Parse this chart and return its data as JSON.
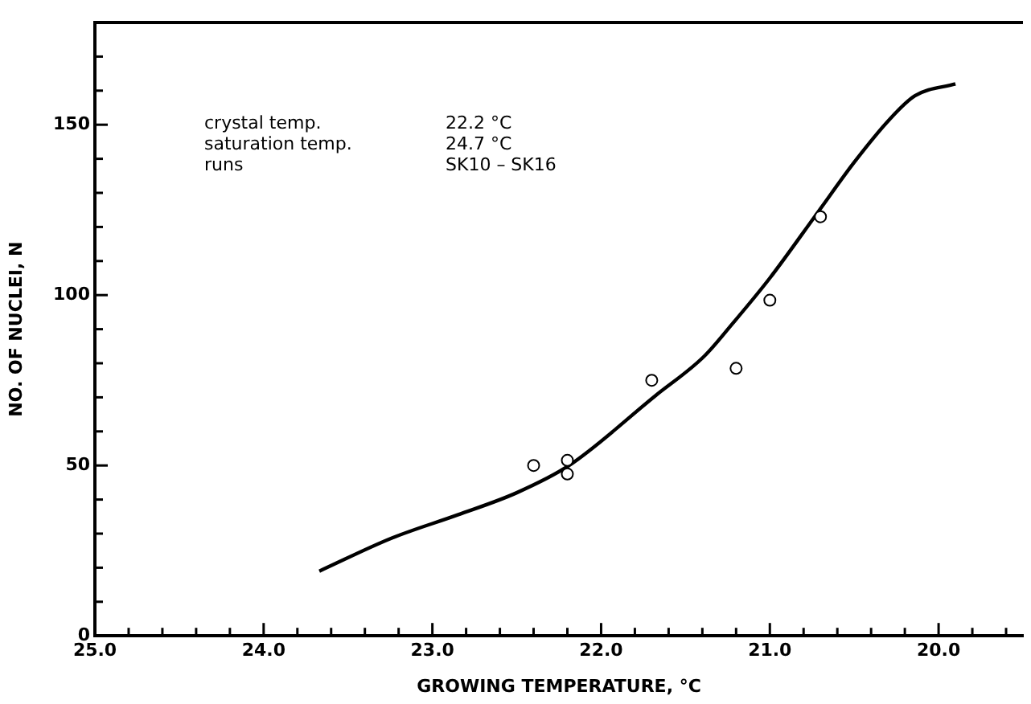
{
  "chart_data": {
    "type": "scatter",
    "xlabel": "GROWING TEMPERATURE, °C",
    "ylabel": "NO. OF NUCLEI, N",
    "annotations": [
      "crystal temp.",
      "22.2 °C",
      "saturation temp.",
      "24.7 °C",
      "runs",
      "SK10 – SK16"
    ],
    "series": [
      {
        "type": "scatter",
        "color": "#000000",
        "marker": "circle",
        "x": [
          22.4,
          22.2,
          22.2,
          21.7,
          21.2,
          21.0,
          20.7
        ],
        "values": [
          50,
          51.5,
          47.5,
          75,
          78.5,
          98.5,
          123
        ]
      },
      {
        "type": "line",
        "color": "#000000",
        "marker": "none",
        "x": [
          19.9,
          20.14,
          20.29,
          20.5,
          20.72,
          21.0,
          21.22,
          21.39,
          21.68,
          22.19,
          22.5,
          22.85,
          23.24,
          23.67
        ],
        "values": [
          162,
          158.5,
          151.6,
          139,
          124,
          105,
          91.7,
          82,
          70.4,
          50,
          42,
          35.5,
          28.7,
          19
        ]
      }
    ],
    "xlim": [
      25,
      19.5
    ],
    "xticks": [
      {
        "value": 25,
        "label": "25.0"
      },
      {
        "value": 24.8,
        "label": null
      },
      {
        "value": 24.6,
        "label": null
      },
      {
        "value": 24.4,
        "label": null
      },
      {
        "value": 24.2,
        "label": null
      },
      {
        "value": 24,
        "label": "24.0"
      },
      {
        "value": 23.8,
        "label": null
      },
      {
        "value": 23.6,
        "label": null
      },
      {
        "value": 23.4,
        "label": null
      },
      {
        "value": 23.2,
        "label": null
      },
      {
        "value": 23,
        "label": "23.0"
      },
      {
        "value": 22.8,
        "label": null
      },
      {
        "value": 22.6,
        "label": null
      },
      {
        "value": 22.4,
        "label": null
      },
      {
        "value": 22.2,
        "label": null
      },
      {
        "value": 22,
        "label": "22.0"
      },
      {
        "value": 21.8,
        "label": null
      },
      {
        "value": 21.6,
        "label": null
      },
      {
        "value": 21.4,
        "label": null
      },
      {
        "value": 21.2,
        "label": null
      },
      {
        "value": 21,
        "label": "21.0"
      },
      {
        "value": 20.8,
        "label": null
      },
      {
        "value": 20.6,
        "label": null
      },
      {
        "value": 20.4,
        "label": null
      },
      {
        "value": 20.2,
        "label": null
      },
      {
        "value": 20,
        "label": "20.0"
      },
      {
        "value": 19.8,
        "label": null
      },
      {
        "value": 19.6,
        "label": null
      }
    ],
    "ylim": [
      0,
      180
    ],
    "yticks": [
      0,
      {
        "value": 10,
        "label": null
      },
      {
        "value": 20,
        "label": null
      },
      {
        "value": 30,
        "label": null
      },
      {
        "value": 40,
        "label": null
      },
      50,
      {
        "value": 60,
        "label": null
      },
      {
        "value": 70,
        "label": null
      },
      {
        "value": 80,
        "label": null
      },
      {
        "value": 90,
        "label": null
      },
      100,
      {
        "value": 110,
        "label": null
      },
      {
        "value": 120,
        "label": null
      },
      {
        "value": 130,
        "label": null
      },
      {
        "value": 140,
        "label": null
      },
      150,
      {
        "value": 160,
        "label": null
      },
      {
        "value": 170,
        "label": null
      }
    ],
    "grid": false,
    "legend": false,
    "line_style": "solid"
  }
}
